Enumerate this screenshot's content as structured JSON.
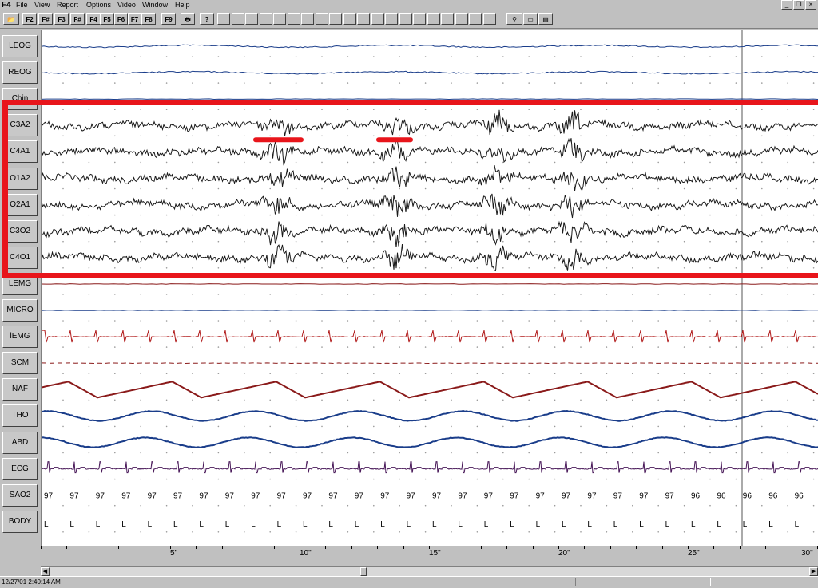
{
  "app": {
    "logo": "F4"
  },
  "menu": [
    "File",
    "View",
    "Report",
    "Options",
    "Video",
    "Window",
    "Help"
  ],
  "toolbar": {
    "fkeys": [
      {
        "label": "F2",
        "style": "red"
      },
      {
        "label": "F#",
        "style": "red"
      },
      {
        "label": "F3",
        "style": "red"
      },
      {
        "label": "F#",
        "style": "red"
      },
      {
        "label": "F4",
        "style": "gray"
      },
      {
        "label": "F5",
        "style": "red"
      },
      {
        "label": "F6",
        "style": "gray"
      },
      {
        "label": "F7",
        "style": "gray"
      },
      {
        "label": "F8",
        "style": "red"
      },
      {
        "label": "F9",
        "style": "red"
      }
    ],
    "help_icon": "?"
  },
  "channels": [
    {
      "name": "LEOG",
      "type": "eog",
      "color": "#1a3d8a"
    },
    {
      "name": "REOG",
      "type": "eog",
      "color": "#1a3d8a"
    },
    {
      "name": "Chin",
      "type": "flat",
      "color": "#1a3d8a"
    },
    {
      "name": "C3A2",
      "type": "eeg",
      "color": "#1a1a1a"
    },
    {
      "name": "C4A1",
      "type": "eeg",
      "color": "#1a1a1a"
    },
    {
      "name": "O1A2",
      "type": "eeg",
      "color": "#1a1a1a"
    },
    {
      "name": "O2A1",
      "type": "eeg",
      "color": "#1a1a1a"
    },
    {
      "name": "C3O2",
      "type": "eeg",
      "color": "#1a1a1a"
    },
    {
      "name": "C4O1",
      "type": "eeg",
      "color": "#1a1a1a"
    },
    {
      "name": "LEMG",
      "type": "flat",
      "color": "#8a1a1a"
    },
    {
      "name": "MICRO",
      "type": "flat",
      "color": "#1a3d8a"
    },
    {
      "name": "lEMG",
      "type": "spikes",
      "color": "#b01818"
    },
    {
      "name": "SCM",
      "type": "flat-dash",
      "color": "#8a1a1a"
    },
    {
      "name": "NAF",
      "type": "resp",
      "color": "#8a1a1a"
    },
    {
      "name": "THO",
      "type": "resp-smooth",
      "color": "#1a3d8a"
    },
    {
      "name": "ABD",
      "type": "resp-smooth",
      "color": "#1a3d8a"
    },
    {
      "name": "ECG",
      "type": "ecg",
      "color": "#4a1a5a"
    },
    {
      "name": "SAO2",
      "type": "sao2",
      "color": "#000000"
    },
    {
      "name": "BODY",
      "type": "body",
      "color": "#000000"
    }
  ],
  "sao2_values": [
    "97",
    "97",
    "97",
    "97",
    "97",
    "97",
    "97",
    "97",
    "97",
    "97",
    "97",
    "97",
    "97",
    "97",
    "97",
    "97",
    "97",
    "97",
    "97",
    "97",
    "97",
    "97",
    "97",
    "97",
    "97",
    "96",
    "96",
    "96",
    "96",
    "96",
    "96",
    "96"
  ],
  "body_values": [
    "L",
    "L",
    "L",
    "L",
    "L",
    "L",
    "L",
    "L",
    "L",
    "L",
    "L",
    "L",
    "L",
    "L",
    "L",
    "L",
    "L",
    "L",
    "L",
    "L",
    "L",
    "L",
    "L",
    "L",
    "L",
    "L",
    "L",
    "L",
    "L",
    "L",
    "L",
    "L"
  ],
  "time_ticks": [
    "5\"",
    "10\"",
    "15\"",
    "20\"",
    "25\"",
    "30\""
  ],
  "status": {
    "text": "12/27/01 2:40:14 AM"
  },
  "colors": {
    "highlight": "#e8151b",
    "markers": "#e8151b"
  }
}
